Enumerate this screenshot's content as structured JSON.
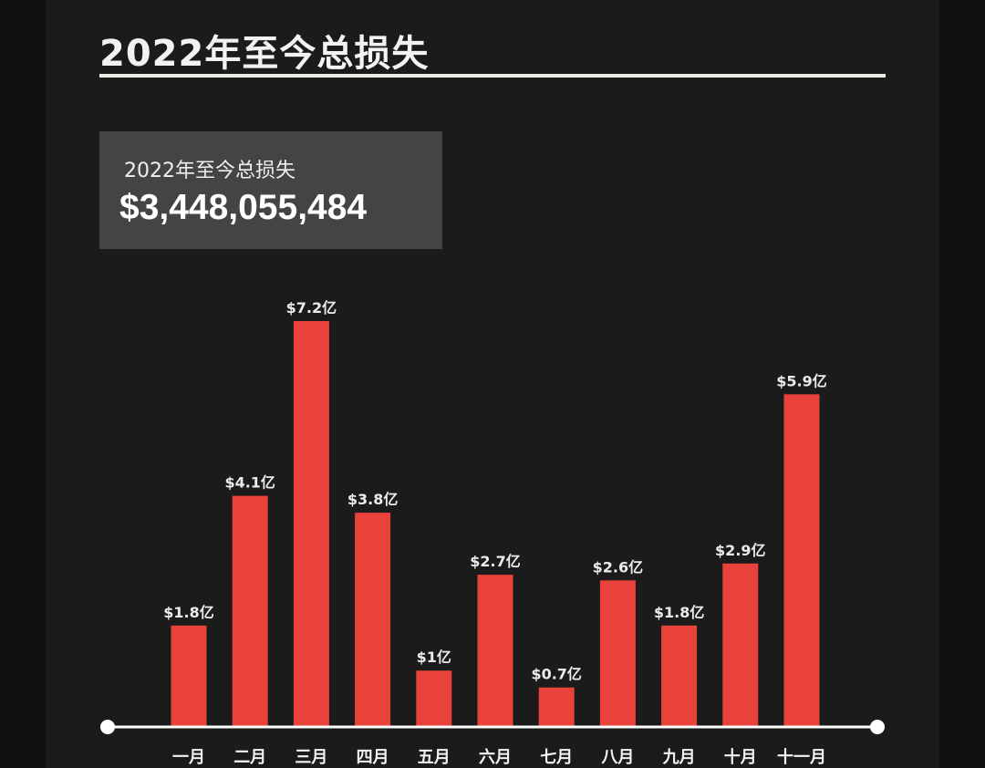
{
  "header": {
    "title": "2022年至今总损失"
  },
  "summary": {
    "label": "2022年至今总损失",
    "value": "$3,448,055,484"
  },
  "colors": {
    "background": "#1b1b1b",
    "bar": "#e8423b",
    "axis": "#ffffff",
    "card": "#444442"
  },
  "chart_data": {
    "type": "bar",
    "title": "",
    "xlabel": "",
    "ylabel": "",
    "unit": "亿美元",
    "categories": [
      "一月",
      "二月",
      "三月",
      "四月",
      "五月",
      "六月",
      "七月",
      "八月",
      "九月",
      "十月",
      "十一月"
    ],
    "values": [
      1.8,
      4.1,
      7.2,
      3.8,
      1.0,
      2.7,
      0.7,
      2.6,
      1.8,
      2.9,
      5.9
    ],
    "data_labels": [
      "$1.8亿",
      "$4.1亿",
      "$7.2亿",
      "$3.8亿",
      "$1亿",
      "$2.7亿",
      "$0.7亿",
      "$2.6亿",
      "$1.8亿",
      "$2.9亿",
      "$5.9亿"
    ],
    "ylim": [
      0,
      7.2
    ],
    "grid": false,
    "legend": "none"
  }
}
